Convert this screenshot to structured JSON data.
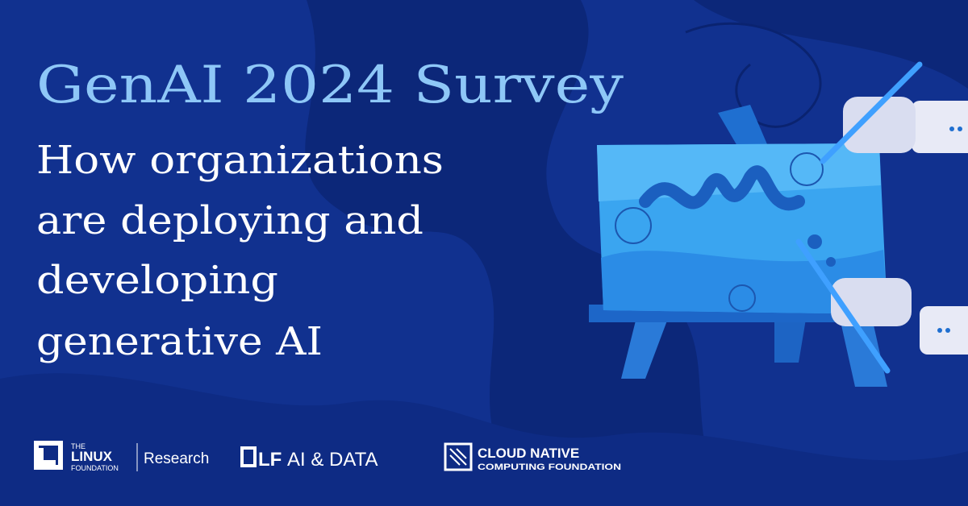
{
  "header": {
    "title": "GenAI 2024 Survey",
    "subtitle_lines": [
      "How organizations",
      "are deploying and",
      "developing",
      "generative AI"
    ]
  },
  "logos": {
    "linux_foundation": {
      "the": "THE",
      "linux": "LINUX",
      "foundation": "FOUNDATION",
      "division": "Research"
    },
    "lf_ai_data": {
      "mark": "LF",
      "name": "AI & DATA"
    },
    "cncf": {
      "line1": "CLOUD NATIVE",
      "line2": "COMPUTING FOUNDATION"
    }
  }
}
